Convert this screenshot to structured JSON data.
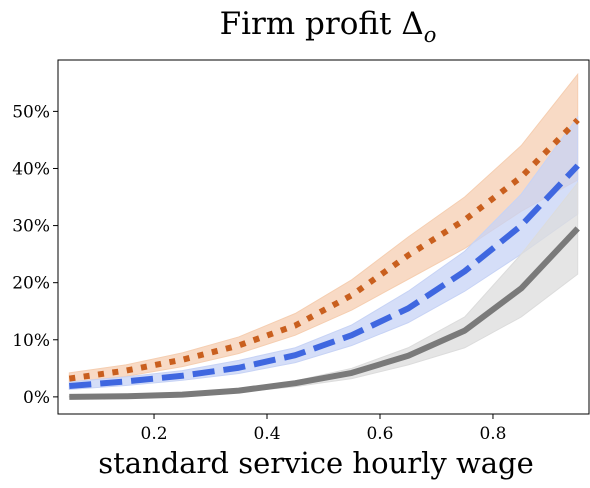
{
  "chart_data": {
    "type": "line",
    "title_main": "Firm profit ",
    "title_symbol": "Δ",
    "title_sub": "o",
    "xlabel": "standard service hourly wage",
    "ylabel": "",
    "xlim": [
      0.03,
      0.97
    ],
    "ylim": [
      -3,
      59
    ],
    "x_ticks": [
      0.2,
      0.4,
      0.6,
      0.8
    ],
    "x_tick_labels": [
      "0.2",
      "0.4",
      "0.6",
      "0.8"
    ],
    "y_ticks": [
      0,
      10,
      20,
      30,
      40,
      50
    ],
    "y_tick_labels": [
      "0%",
      "10%",
      "20%",
      "30%",
      "40%",
      "50%"
    ],
    "grid": false,
    "legend": "none",
    "x": [
      0.05,
      0.15,
      0.25,
      0.35,
      0.45,
      0.55,
      0.65,
      0.75,
      0.85,
      0.95
    ],
    "series": [
      {
        "style": "dotted",
        "color": "#c95f1e",
        "band_color": "#f5ceb1",
        "values": [
          3.2,
          4.6,
          6.5,
          9.0,
          12.5,
          17.8,
          24.8,
          31.0,
          38.5,
          48.5
        ],
        "lower": [
          2.6,
          3.6,
          5.3,
          7.6,
          10.8,
          15.2,
          20.6,
          26.0,
          32.5,
          38.0
        ],
        "upper": [
          4.2,
          5.6,
          7.7,
          10.5,
          14.6,
          20.5,
          28.0,
          35.0,
          44.0,
          56.5
        ]
      },
      {
        "style": "dashed",
        "color": "#3f67e0",
        "band_color": "#c7d3f5",
        "values": [
          1.9,
          2.7,
          3.7,
          5.1,
          7.3,
          10.8,
          15.5,
          22.0,
          30.0,
          40.5
        ],
        "lower": [
          1.3,
          2.0,
          2.9,
          4.1,
          6.0,
          9.0,
          13.0,
          18.5,
          25.0,
          32.0
        ],
        "upper": [
          2.6,
          3.5,
          4.6,
          6.4,
          8.6,
          12.6,
          18.5,
          25.5,
          35.5,
          49.0
        ]
      },
      {
        "style": "solid",
        "color": "#7a7a7a",
        "band_color": "#dcdcdc",
        "values": [
          0.0,
          0.1,
          0.4,
          1.1,
          2.4,
          4.2,
          7.2,
          11.6,
          19.0,
          29.5
        ],
        "lower": [
          0.0,
          0.05,
          0.25,
          0.8,
          1.8,
          3.2,
          5.6,
          8.6,
          14.0,
          21.5
        ],
        "upper": [
          0.1,
          0.2,
          0.6,
          1.4,
          2.8,
          5.0,
          8.6,
          14.0,
          25.0,
          37.5
        ]
      }
    ]
  }
}
